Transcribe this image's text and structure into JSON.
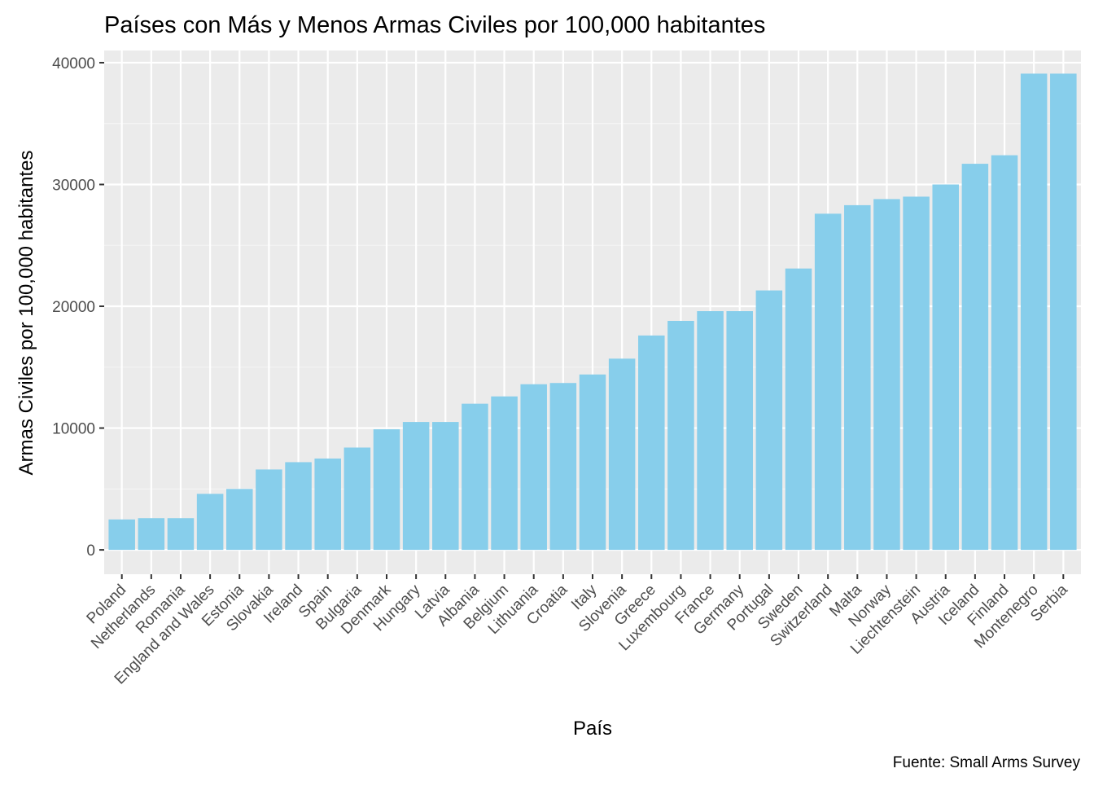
{
  "chart_data": {
    "type": "bar",
    "title": "Países con Más y Menos Armas Civiles por 100,000 habitantes",
    "xlabel": "País",
    "ylabel": "Armas Civiles por 100,000 habitantes",
    "caption": "Fuente: Small Arms Survey",
    "ylim": [
      -2000,
      41000
    ],
    "yticks": [
      0,
      10000,
      20000,
      30000,
      40000
    ],
    "ytick_labels": [
      "0",
      "10000",
      "20000",
      "30000",
      "40000"
    ],
    "grid": true,
    "legend": "none",
    "categories": [
      "Poland",
      "Netherlands",
      "Romania",
      "England and Wales",
      "Estonia",
      "Slovakia",
      "Ireland",
      "Spain",
      "Bulgaria",
      "Denmark",
      "Hungary",
      "Latvia",
      "Albania",
      "Belgium",
      "Lithuania",
      "Croatia",
      "Italy",
      "Slovenia",
      "Greece",
      "Luxembourg",
      "France",
      "Germany",
      "Portugal",
      "Sweden",
      "Switzerland",
      "Malta",
      "Norway",
      "Liechtenstein",
      "Austria",
      "Iceland",
      "Finland",
      "Montenegro",
      "Serbia"
    ],
    "values": [
      2500,
      2600,
      2600,
      4600,
      5000,
      6600,
      7200,
      7500,
      8400,
      9900,
      10500,
      10500,
      12000,
      12600,
      13600,
      13700,
      14400,
      15700,
      17600,
      18800,
      19600,
      19600,
      21300,
      23100,
      27600,
      28300,
      28800,
      29000,
      30000,
      31700,
      32400,
      39100,
      39100
    ],
    "colors": {
      "bar": "#87ceeb",
      "panel": "#ebebeb",
      "grid_major": "#ffffff",
      "grid_minor": "#f5f5f5",
      "tick_text": "#4d4d4d",
      "axis_title": "#000000",
      "tick_mark": "#333333"
    }
  }
}
